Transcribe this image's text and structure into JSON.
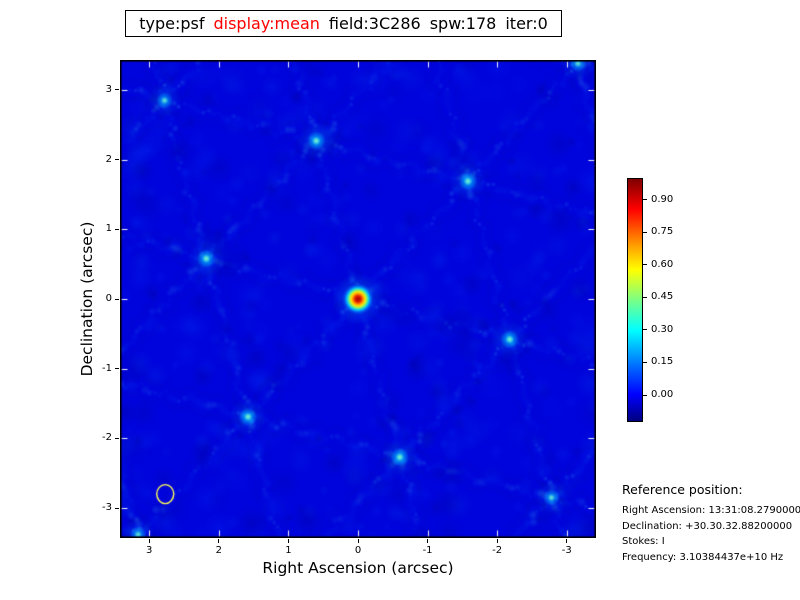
{
  "title": {
    "segments": [
      {
        "text": "type:psf",
        "color": "#000000"
      },
      {
        "text": "display:mean",
        "color": "#ff0000"
      },
      {
        "text": "field:3C286",
        "color": "#000000"
      },
      {
        "text": "spw:178",
        "color": "#000000"
      },
      {
        "text": "iter:0",
        "color": "#000000"
      }
    ]
  },
  "chart_data": {
    "type": "heatmap",
    "title": "type:psf display:mean field:3C286 spw:178 iter:0",
    "xlabel": "Right Ascension (arcsec)",
    "ylabel": "Declination (arcsec)",
    "xlim": [
      3.42,
      -3.42
    ],
    "ylim": [
      -3.43,
      3.43
    ],
    "x_ticks": [
      3,
      2,
      1,
      0,
      -1,
      -2,
      -3
    ],
    "y_ticks": [
      3,
      2,
      1,
      0,
      -1,
      -2,
      -3
    ],
    "grid": false,
    "colormap": "jet",
    "colorbar": {
      "position": "right",
      "vmin": -0.115,
      "vmax": 1.0,
      "ticks": [
        0.9,
        0.75,
        0.6,
        0.45,
        0.3,
        0.15,
        0.0
      ],
      "tick_labels": [
        "0.90",
        "0.75",
        "0.60",
        "0.45",
        "0.30",
        "0.15",
        "0.00"
      ]
    },
    "peak": {
      "ra": 0.0,
      "dec": 0.0,
      "value": 1.0
    },
    "lattice_vectors": {
      "v1": {
        "ra": 2.18,
        "dec": 0.58
      },
      "v2": {
        "ra": 0.6,
        "dec": 2.27
      }
    },
    "secondary_lobes": [
      {
        "ra": 2.18,
        "dec": 0.58,
        "value": 0.3
      },
      {
        "ra": -2.18,
        "dec": -0.58,
        "value": 0.3
      },
      {
        "ra": 0.6,
        "dec": 2.27,
        "value": 0.3
      },
      {
        "ra": -0.6,
        "dec": -2.27,
        "value": 0.3
      },
      {
        "ra": 1.58,
        "dec": -1.69,
        "value": 0.3
      },
      {
        "ra": -1.58,
        "dec": 1.69,
        "value": 0.3
      }
    ],
    "beam": {
      "ra": 2.77,
      "dec": -2.8,
      "radius_arcsec": 0.13,
      "outline_color": "#ffff55"
    }
  },
  "colors": {
    "title_highlight": "#ff0000",
    "frame": "#000000",
    "background_value_color": "#0004dc"
  },
  "reference": {
    "header": "Reference position:",
    "lines": [
      "Right Ascension: 13:31:08.27900000",
      "Declination: +30.30.32.88200000",
      "Stokes: I",
      "Frequency: 3.10384437e+10 Hz"
    ]
  }
}
